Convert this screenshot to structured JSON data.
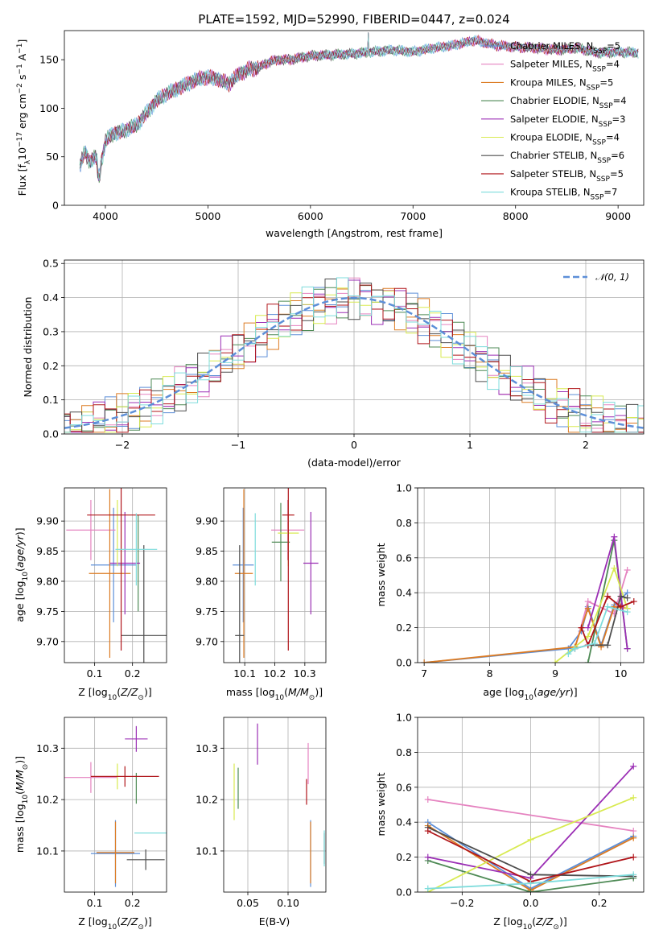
{
  "title": "PLATE=1592, MJD=52990, FIBERID=0447, z=0.024",
  "colors": {
    "Chabrier MILES": "#5d8fd8",
    "Salpeter MILES": "#e583c0",
    "Kroupa MILES": "#dc7b23",
    "Chabrier ELODIE": "#4e8a55",
    "Salpeter ELODIE": "#9b2fb5",
    "Kroupa ELODIE": "#d8ea51",
    "Chabrier STELIB": "#4d4d4d",
    "Salpeter STELIB": "#b0151a",
    "Kroupa STELIB": "#7edcdc",
    "gaussian": "#5d8fd8"
  },
  "models": [
    "Chabrier MILES",
    "Salpeter MILES",
    "Kroupa MILES",
    "Chabrier ELODIE",
    "Salpeter ELODIE",
    "Kroupa ELODIE",
    "Chabrier STELIB",
    "Salpeter STELIB",
    "Kroupa STELIB"
  ],
  "chart_data": [
    {
      "id": "spectrum",
      "type": "line",
      "title": "PLATE=1592, MJD=52990, FIBERID=0447, z=0.024",
      "xlabel": "wavelength [Angstrom, rest frame]",
      "ylabel": "Flux [f_λ 10^-17 erg cm^-2 s^-1 A^-1]",
      "xlim": [
        3600,
        9250
      ],
      "ylim": [
        0,
        180
      ],
      "xticks": [
        4000,
        5000,
        6000,
        7000,
        8000,
        9000
      ],
      "yticks": [
        0,
        50,
        100,
        150
      ],
      "continuum_x": [
        3750,
        3800,
        3850,
        3900,
        3950,
        4000,
        4050,
        4100,
        4150,
        4200,
        4300,
        4400,
        4500,
        4600,
        4700,
        4800,
        4900,
        5000,
        5100,
        5200,
        5300,
        5400,
        5500,
        5600,
        5700,
        5800,
        5900,
        6000,
        6200,
        6400,
        6600,
        6800,
        7000,
        7200,
        7400,
        7600,
        7800,
        8000,
        8200,
        8400,
        8600,
        8800,
        9000,
        9200
      ],
      "continuum_y": [
        40,
        55,
        45,
        50,
        40,
        65,
        72,
        75,
        75,
        78,
        82,
        95,
        108,
        115,
        120,
        125,
        130,
        132,
        130,
        125,
        135,
        140,
        142,
        148,
        150,
        150,
        152,
        154,
        155,
        156,
        158,
        160,
        158,
        162,
        165,
        170,
        165,
        163,
        162,
        160,
        162,
        157,
        158,
        157
      ],
      "dropouts": [
        {
          "model": "Kroupa ELODIE",
          "x": 3920
        },
        {
          "model": "Kroupa ELODIE",
          "x": 6780
        },
        {
          "model": "Kroupa MILES",
          "x": 7420
        }
      ],
      "emission_peak": {
        "x": 6563,
        "y": 178
      },
      "legend": [
        {
          "label": "Chabrier MILES, N_SSP=5",
          "text": "Chabrier MILES, N",
          "sub": "SSP",
          "num": "=5",
          "model": "Chabrier MILES"
        },
        {
          "label": "Salpeter MILES, N_SSP=4",
          "text": "Salpeter MILES, N",
          "sub": "SSP",
          "num": "=4",
          "model": "Salpeter MILES"
        },
        {
          "label": "Kroupa MILES, N_SSP=5",
          "text": "Kroupa MILES, N",
          "sub": "SSP",
          "num": "=5",
          "model": "Kroupa MILES"
        },
        {
          "label": "Chabrier ELODIE, N_SSP=4",
          "text": "Chabrier ELODIE, N",
          "sub": "SSP",
          "num": "=4",
          "model": "Chabrier ELODIE"
        },
        {
          "label": "Salpeter ELODIE, N_SSP=3",
          "text": "Salpeter ELODIE, N",
          "sub": "SSP",
          "num": "=3",
          "model": "Salpeter ELODIE"
        },
        {
          "label": "Kroupa ELODIE, N_SSP=4",
          "text": "Kroupa ELODIE, N",
          "sub": "SSP",
          "num": "=4",
          "model": "Kroupa ELODIE"
        },
        {
          "label": "Chabrier STELIB, N_SSP=6",
          "text": "Chabrier STELIB, N",
          "sub": "SSP",
          "num": "=6",
          "model": "Chabrier STELIB"
        },
        {
          "label": "Salpeter STELIB, N_SSP=5",
          "text": "Salpeter STELIB, N",
          "sub": "SSP",
          "num": "=5",
          "model": "Salpeter STELIB"
        },
        {
          "label": "Kroupa STELIB, N_SSP=7",
          "text": "Kroupa STELIB, N",
          "sub": "SSP",
          "num": "=7",
          "model": "Kroupa STELIB"
        }
      ]
    },
    {
      "id": "residuals",
      "type": "histogram",
      "xlabel": "(data-model)/error",
      "ylabel": "Normed distribution",
      "xlim": [
        -2.5,
        2.5
      ],
      "ylim": [
        0,
        0.51
      ],
      "xticks": [
        -2,
        -1,
        0,
        1,
        2
      ],
      "yticks": [
        0.0,
        0.1,
        0.2,
        0.3,
        0.4,
        0.5
      ],
      "bin_width": 0.1,
      "gaussian_legend": "𝒩(0, 1)",
      "gaussian": {
        "mean": 0,
        "sigma": 1
      }
    },
    {
      "id": "age-vs-Z",
      "type": "errorbar",
      "xlabel": "Z [log10(Z/Z⊙)]",
      "ylabel": "age [log10(age/yr)]",
      "xlim": [
        0.02,
        0.29
      ],
      "ylim": [
        9.665,
        9.955
      ],
      "xticks": [
        0.1,
        0.2
      ],
      "yticks": [
        9.7,
        9.75,
        9.8,
        9.85,
        9.9
      ],
      "points": [
        {
          "model": "Chabrier MILES",
          "x": 0.15,
          "xerr": 0.06,
          "y": 9.827,
          "yerr": 0.095
        },
        {
          "model": "Salpeter MILES",
          "x": 0.09,
          "xerr": 0.065,
          "y": 9.885,
          "yerr": 0.05
        },
        {
          "model": "Kroupa MILES",
          "x": 0.14,
          "xerr": 0.055,
          "y": 9.813,
          "yerr": 0.14
        },
        {
          "model": "Chabrier ELODIE",
          "x": 0.215,
          "xerr": 0.0,
          "y": 9.83,
          "yerr": 0.08
        },
        {
          "model": "Salpeter ELODIE",
          "x": 0.18,
          "xerr": 0.04,
          "y": 9.83,
          "yerr": 0.085
        },
        {
          "model": "Kroupa ELODIE",
          "x": 0.16,
          "xerr": 0.0,
          "y": 9.88,
          "yerr": 0.055
        },
        {
          "model": "Chabrier STELIB",
          "x": 0.23,
          "xerr": 0.06,
          "y": 9.71,
          "yerr": 0.15
        },
        {
          "model": "Salpeter STELIB",
          "x": 0.17,
          "xerr": 0.09,
          "y": 9.91,
          "yerr": 0.225
        },
        {
          "model": "Kroupa STELIB",
          "x": 0.21,
          "xerr": 0.055,
          "y": 9.853,
          "yerr": 0.06
        }
      ]
    },
    {
      "id": "age-vs-mass",
      "type": "errorbar",
      "xlabel": "mass [log10(M/M⊙)]",
      "ylabel": "",
      "xlim": [
        10.03,
        10.37
      ],
      "ylim": [
        9.665,
        9.955
      ],
      "xticks": [
        10.1,
        10.2,
        10.3
      ],
      "yticks": [
        9.7,
        9.75,
        9.8,
        9.85,
        9.9
      ],
      "points": [
        {
          "model": "Chabrier MILES",
          "x": 10.095,
          "xerr": 0.035,
          "y": 9.827,
          "yerr": 0.095
        },
        {
          "model": "Salpeter MILES",
          "x": 10.243,
          "xerr": 0.055,
          "y": 9.885,
          "yerr": 0.05
        },
        {
          "model": "Kroupa MILES",
          "x": 10.097,
          "xerr": 0.03,
          "y": 9.813,
          "yerr": 0.14
        },
        {
          "model": "Chabrier ELODIE",
          "x": 10.22,
          "xerr": 0.03,
          "y": 9.865,
          "yerr": 0.065
        },
        {
          "model": "Salpeter ELODIE",
          "x": 10.32,
          "xerr": 0.025,
          "y": 9.83,
          "yerr": 0.085
        },
        {
          "model": "Kroupa ELODIE",
          "x": 10.245,
          "xerr": 0.035,
          "y": 9.88,
          "yerr": 0.055
        },
        {
          "model": "Chabrier STELIB",
          "x": 10.083,
          "xerr": 0.015,
          "y": 9.71,
          "yerr": 0.15
        },
        {
          "model": "Salpeter STELIB",
          "x": 10.245,
          "xerr": 0.02,
          "y": 9.91,
          "yerr": 0.225
        },
        {
          "model": "Kroupa STELIB",
          "x": 10.135,
          "xerr": 0.0,
          "y": 9.853,
          "yerr": 0.06
        }
      ]
    },
    {
      "id": "mass-weight-vs-age",
      "type": "line",
      "xlabel": "age [log10(age/yr)]",
      "ylabel": "mass weight",
      "xlim": [
        6.9,
        10.35
      ],
      "ylim": [
        0,
        1.0
      ],
      "xticks": [
        7,
        8,
        9,
        10
      ],
      "yticks": [
        0.0,
        0.2,
        0.4,
        0.6,
        0.8,
        1.0
      ],
      "series": [
        {
          "model": "Chabrier MILES",
          "x": [
            7.0,
            9.2,
            9.4,
            9.5,
            9.7,
            9.9,
            10.1
          ],
          "y": [
            0.0,
            0.08,
            0.18,
            0.32,
            0.1,
            0.33,
            0.4
          ]
        },
        {
          "model": "Salpeter MILES",
          "x": [
            9.3,
            9.5,
            9.9,
            10.1
          ],
          "y": [
            0.08,
            0.35,
            0.28,
            0.53
          ]
        },
        {
          "model": "Kroupa MILES",
          "x": [
            7.0,
            9.3,
            9.4,
            9.5,
            9.7,
            9.9,
            10.1
          ],
          "y": [
            0.0,
            0.09,
            0.2,
            0.31,
            0.09,
            0.32,
            0.31
          ]
        },
        {
          "model": "Chabrier ELODIE",
          "x": [
            9.5,
            9.9,
            10.1
          ],
          "y": [
            0.0,
            0.7,
            0.08
          ]
        },
        {
          "model": "Salpeter ELODIE",
          "x": [
            9.5,
            9.9,
            10.1
          ],
          "y": [
            0.2,
            0.72,
            0.08
          ]
        },
        {
          "model": "Kroupa ELODIE",
          "x": [
            9.0,
            9.5,
            9.9,
            10.1
          ],
          "y": [
            0.0,
            0.15,
            0.54,
            0.31
          ]
        },
        {
          "model": "Chabrier STELIB",
          "x": [
            9.3,
            9.5,
            9.8,
            10.0,
            10.1
          ],
          "y": [
            0.08,
            0.1,
            0.1,
            0.38,
            0.37
          ]
        },
        {
          "model": "Salpeter STELIB",
          "x": [
            9.4,
            9.5,
            9.8,
            10.0,
            10.2
          ],
          "y": [
            0.2,
            0.1,
            0.38,
            0.32,
            0.35
          ]
        },
        {
          "model": "Kroupa STELIB",
          "x": [
            9.2,
            9.3,
            9.6,
            9.8,
            10.1
          ],
          "y": [
            0.05,
            0.08,
            0.11,
            0.32,
            0.29
          ]
        }
      ]
    },
    {
      "id": "mass-vs-Z",
      "type": "errorbar",
      "xlabel": "Z [log10(Z/Z⊙)]",
      "ylabel": "mass [log10(M/M⊙)]",
      "xlim": [
        0.02,
        0.29
      ],
      "ylim": [
        10.02,
        10.36
      ],
      "xticks": [
        0.1,
        0.2
      ],
      "yticks": [
        10.1,
        10.2,
        10.3
      ],
      "points": [
        {
          "model": "Chabrier MILES",
          "x": 0.155,
          "xerr": 0.065,
          "y": 10.095,
          "yerr": 0.065
        },
        {
          "model": "Salpeter MILES",
          "x": 0.09,
          "xerr": 0.07,
          "y": 10.243,
          "yerr": 0.03
        },
        {
          "model": "Kroupa MILES",
          "x": 0.155,
          "xerr": 0.05,
          "y": 10.097,
          "yerr": 0.06
        },
        {
          "model": "Chabrier ELODIE",
          "x": 0.21,
          "xerr": 0.0,
          "y": 10.222,
          "yerr": 0.03
        },
        {
          "model": "Salpeter ELODIE",
          "x": 0.21,
          "xerr": 0.03,
          "y": 10.318,
          "yerr": 0.025
        },
        {
          "model": "Kroupa ELODIE",
          "x": 0.16,
          "xerr": 0.0,
          "y": 10.245,
          "yerr": 0.025
        },
        {
          "model": "Chabrier STELIB",
          "x": 0.235,
          "xerr": 0.05,
          "y": 10.083,
          "yerr": 0.02
        },
        {
          "model": "Salpeter STELIB",
          "x": 0.18,
          "xerr": 0.09,
          "y": 10.245,
          "yerr": 0.02
        },
        {
          "model": "Kroupa STELIB",
          "x": 0.25,
          "xerr": 0.045,
          "y": 10.135,
          "yerr": 0.0
        }
      ]
    },
    {
      "id": "mass-vs-ebv",
      "type": "errorbar",
      "xlabel": "E(B-V)",
      "ylabel": "",
      "xlim": [
        0.02,
        0.147
      ],
      "ylim": [
        10.02,
        10.36
      ],
      "xticks": [
        0.05,
        0.1
      ],
      "yticks": [
        10.1,
        10.2,
        10.3
      ],
      "points": [
        {
          "model": "Chabrier MILES",
          "x": 0.128,
          "xerr": 0.0,
          "y": 10.095,
          "yerr": 0.065
        },
        {
          "model": "Salpeter MILES",
          "x": 0.125,
          "xerr": 0.0,
          "y": 10.27,
          "yerr": 0.04
        },
        {
          "model": "Kroupa MILES",
          "x": 0.128,
          "xerr": 0.0,
          "y": 10.097,
          "yerr": 0.06
        },
        {
          "model": "Chabrier ELODIE",
          "x": 0.038,
          "xerr": 0.0,
          "y": 10.222,
          "yerr": 0.04
        },
        {
          "model": "Salpeter ELODIE",
          "x": 0.062,
          "xerr": 0.0,
          "y": 10.308,
          "yerr": 0.04
        },
        {
          "model": "Kroupa ELODIE",
          "x": 0.033,
          "xerr": 0.0,
          "y": 10.215,
          "yerr": 0.055
        },
        {
          "model": "Chabrier STELIB",
          "x": 0.145,
          "xerr": 0.0,
          "y": 10.105,
          "yerr": 0.03
        },
        {
          "model": "Salpeter STELIB",
          "x": 0.123,
          "xerr": 0.0,
          "y": 10.215,
          "yerr": 0.025
        },
        {
          "model": "Kroupa STELIB",
          "x": 0.145,
          "xerr": 0.0,
          "y": 10.105,
          "yerr": 0.035
        }
      ]
    },
    {
      "id": "mass-weight-vs-Z",
      "type": "line",
      "xlabel": "Z [log10(Z/Z⊙)]",
      "ylabel": "mass weight",
      "xlim": [
        -0.33,
        0.33
      ],
      "ylim": [
        0,
        1.0
      ],
      "xticks": [
        -0.2,
        0.0,
        0.2
      ],
      "yticks": [
        0.0,
        0.2,
        0.4,
        0.6,
        0.8,
        1.0
      ],
      "series": [
        {
          "model": "Chabrier MILES",
          "x": [
            -0.3,
            0.0,
            0.3
          ],
          "y": [
            0.4,
            0.02,
            0.32
          ]
        },
        {
          "model": "Salpeter MILES",
          "x": [
            -0.3,
            0.3
          ],
          "y": [
            0.53,
            0.35
          ]
        },
        {
          "model": "Kroupa MILES",
          "x": [
            -0.3,
            0.0,
            0.3
          ],
          "y": [
            0.38,
            0.01,
            0.31
          ]
        },
        {
          "model": "Chabrier ELODIE",
          "x": [
            -0.3,
            0.0,
            0.3
          ],
          "y": [
            0.18,
            0.0,
            0.08
          ]
        },
        {
          "model": "Salpeter ELODIE",
          "x": [
            -0.3,
            0.0,
            0.3
          ],
          "y": [
            0.2,
            0.08,
            0.72
          ]
        },
        {
          "model": "Kroupa ELODIE",
          "x": [
            -0.3,
            0.0,
            0.3
          ],
          "y": [
            0.0,
            0.3,
            0.54
          ]
        },
        {
          "model": "Chabrier STELIB",
          "x": [
            -0.3,
            0.0,
            0.3
          ],
          "y": [
            0.37,
            0.1,
            0.09
          ]
        },
        {
          "model": "Salpeter STELIB",
          "x": [
            -0.3,
            0.0,
            0.3
          ],
          "y": [
            0.35,
            0.06,
            0.2
          ]
        },
        {
          "model": "Kroupa STELIB",
          "x": [
            -0.3,
            0.0,
            0.3
          ],
          "y": [
            0.02,
            0.05,
            0.1
          ]
        }
      ]
    }
  ]
}
